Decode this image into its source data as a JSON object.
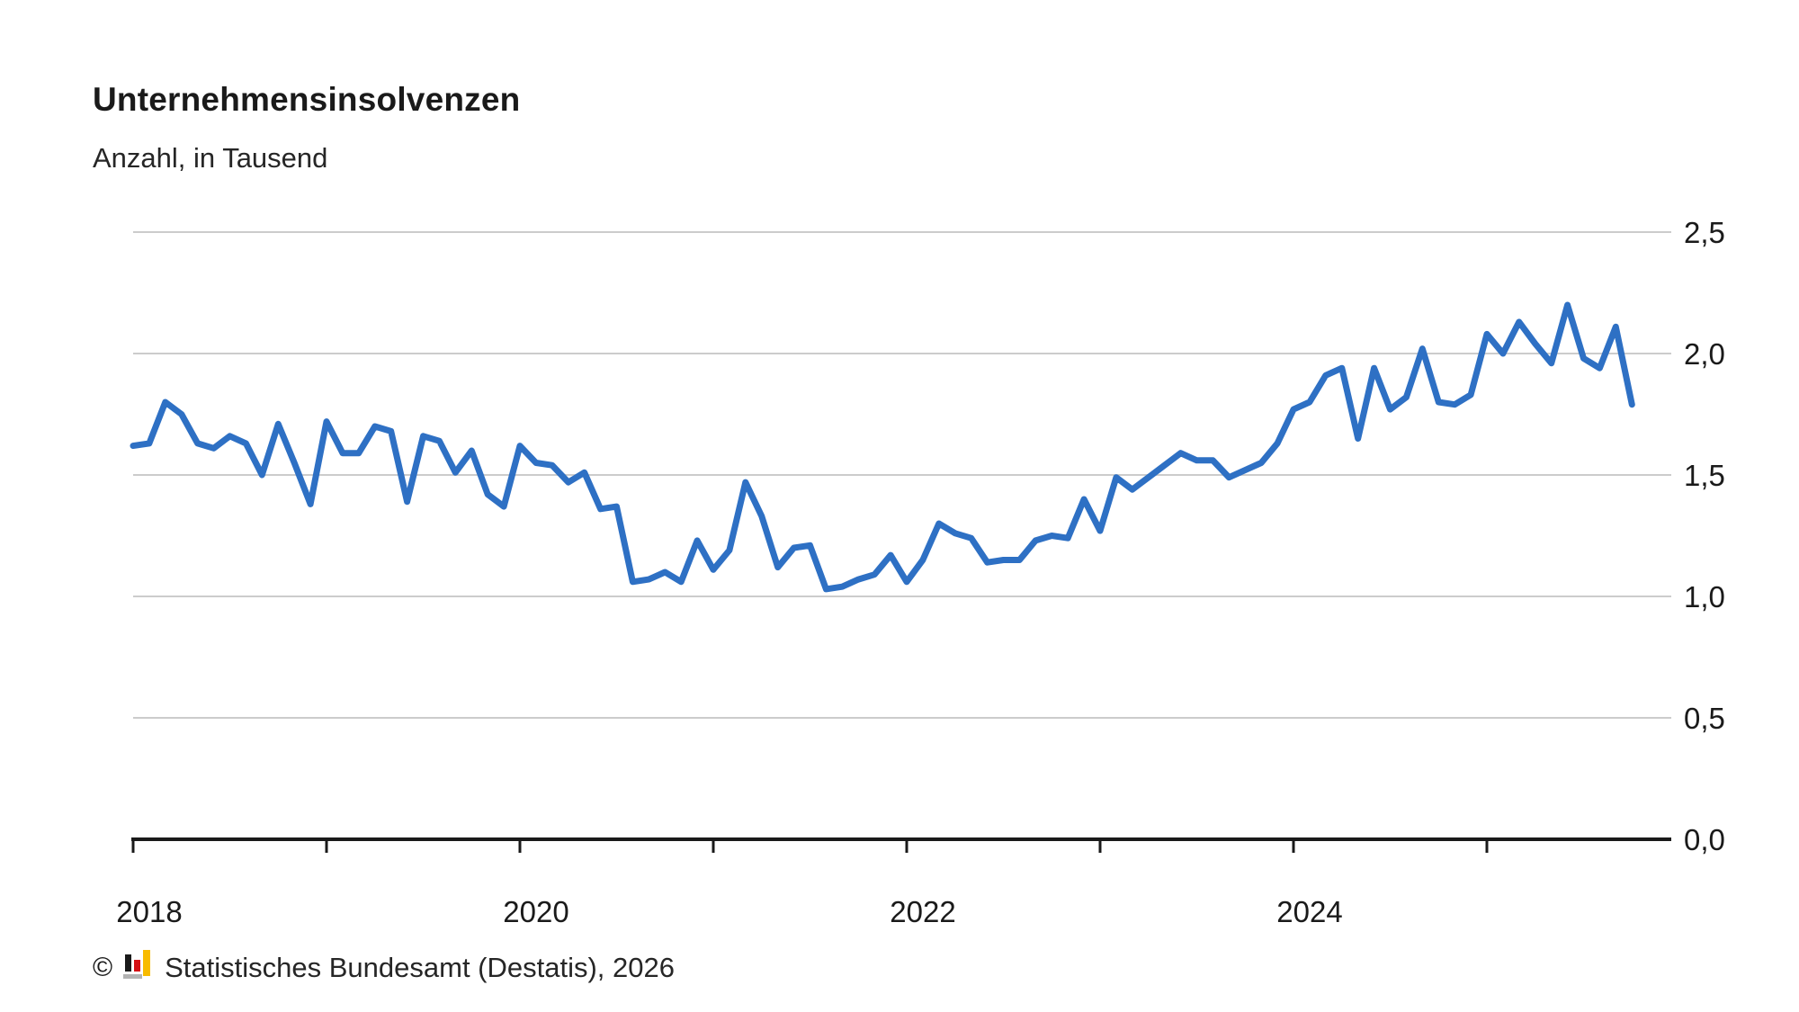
{
  "chart": {
    "title": "Unternehmensinsolvenzen",
    "subtitle": "Anzahl, in Tausend"
  },
  "source": {
    "copyright_symbol": "©",
    "text": "Statistisches Bundesamt (Destatis), 2026",
    "logo_icon": "destatis-bar-chart-logo"
  },
  "colors": {
    "line": "#2e70c4",
    "grid": "#cccccc",
    "axis": "#1a1a1a",
    "tick_text": "#1a1a1a",
    "logo_black": "#1a1a1a",
    "logo_red": "#d40f14",
    "logo_gold": "#f8bb00",
    "logo_gray": "#b3b3b3"
  },
  "chart_data": {
    "type": "line",
    "title": "Unternehmensinsolvenzen",
    "subtitle": "Anzahl, in Tausend",
    "unit": "Tausend (thousands of corporate insolvencies per month)",
    "grid": true,
    "legend_position": "none",
    "ylim": [
      0,
      2.5
    ],
    "y_ticks": [
      {
        "value": 0.0,
        "label": "0,0"
      },
      {
        "value": 0.5,
        "label": "0,5"
      },
      {
        "value": 1.0,
        "label": "1,0"
      },
      {
        "value": 1.5,
        "label": "1,5"
      },
      {
        "value": 2.0,
        "label": "2,0"
      },
      {
        "value": 2.5,
        "label": "2,5"
      }
    ],
    "x_tick_years": [
      "2018",
      "2019",
      "2020",
      "2021",
      "2022",
      "2023",
      "2024",
      "2025"
    ],
    "x_tick_labels_visible": [
      "2018",
      "2020",
      "2022",
      "2024"
    ],
    "x": [
      "2018-01",
      "2018-02",
      "2018-03",
      "2018-04",
      "2018-05",
      "2018-06",
      "2018-07",
      "2018-08",
      "2018-09",
      "2018-10",
      "2018-11",
      "2018-12",
      "2019-01",
      "2019-02",
      "2019-03",
      "2019-04",
      "2019-05",
      "2019-06",
      "2019-07",
      "2019-08",
      "2019-09",
      "2019-10",
      "2019-11",
      "2019-12",
      "2020-01",
      "2020-02",
      "2020-03",
      "2020-04",
      "2020-05",
      "2020-06",
      "2020-07",
      "2020-08",
      "2020-09",
      "2020-10",
      "2020-11",
      "2020-12",
      "2021-01",
      "2021-02",
      "2021-03",
      "2021-04",
      "2021-05",
      "2021-06",
      "2021-07",
      "2021-08",
      "2021-09",
      "2021-10",
      "2021-11",
      "2021-12",
      "2022-01",
      "2022-02",
      "2022-03",
      "2022-04",
      "2022-05",
      "2022-06",
      "2022-07",
      "2022-08",
      "2022-09",
      "2022-10",
      "2022-11",
      "2022-12",
      "2023-01",
      "2023-02",
      "2023-03",
      "2023-04",
      "2023-05",
      "2023-06",
      "2023-07",
      "2023-08",
      "2023-09",
      "2023-10",
      "2023-11",
      "2023-12",
      "2024-01",
      "2024-02",
      "2024-03",
      "2024-04",
      "2024-05",
      "2024-06",
      "2024-07",
      "2024-08",
      "2024-09",
      "2024-10",
      "2024-11",
      "2024-12",
      "2025-01",
      "2025-02",
      "2025-03",
      "2025-04",
      "2025-05",
      "2025-06",
      "2025-07",
      "2025-08",
      "2025-09",
      "2025-10"
    ],
    "values": [
      1.62,
      1.63,
      1.8,
      1.75,
      1.63,
      1.61,
      1.66,
      1.63,
      1.5,
      1.71,
      1.55,
      1.38,
      1.72,
      1.59,
      1.59,
      1.7,
      1.68,
      1.39,
      1.66,
      1.64,
      1.51,
      1.6,
      1.42,
      1.37,
      1.62,
      1.55,
      1.54,
      1.47,
      1.51,
      1.36,
      1.37,
      1.06,
      1.07,
      1.1,
      1.06,
      1.23,
      1.11,
      1.19,
      1.47,
      1.33,
      1.12,
      1.2,
      1.21,
      1.03,
      1.04,
      1.07,
      1.09,
      1.17,
      1.06,
      1.15,
      1.3,
      1.26,
      1.24,
      1.14,
      1.15,
      1.15,
      1.23,
      1.25,
      1.24,
      1.4,
      1.27,
      1.49,
      1.44,
      1.49,
      1.54,
      1.59,
      1.56,
      1.56,
      1.49,
      1.52,
      1.55,
      1.63,
      1.77,
      1.8,
      1.91,
      1.94,
      1.65,
      1.94,
      1.77,
      1.82,
      2.02,
      1.8,
      1.79,
      1.83,
      2.08,
      2.0,
      2.13,
      2.04,
      1.96,
      2.2,
      1.98,
      1.94,
      2.11,
      1.79
    ]
  }
}
